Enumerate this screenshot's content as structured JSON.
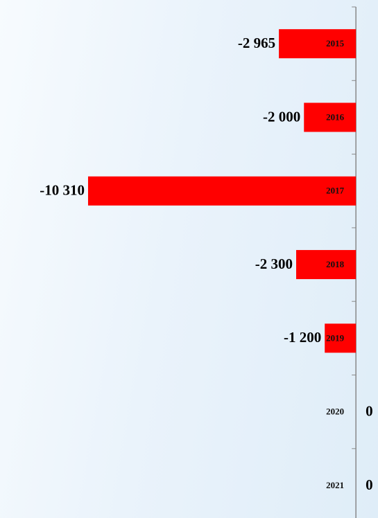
{
  "chart_data": {
    "type": "bar",
    "orientation": "horizontal",
    "categories": [
      "2015",
      "2016",
      "2017",
      "2018",
      "2019",
      "2020",
      "2021"
    ],
    "values": [
      -2965,
      -2000,
      -10310,
      -2300,
      -1200,
      0,
      0
    ],
    "value_labels": [
      "-2 965",
      "-2 000",
      "-10 310",
      "-2 300",
      "-1 200",
      "0",
      "0"
    ],
    "color": "#ff0000",
    "xlim": [
      -13700,
      850
    ]
  }
}
